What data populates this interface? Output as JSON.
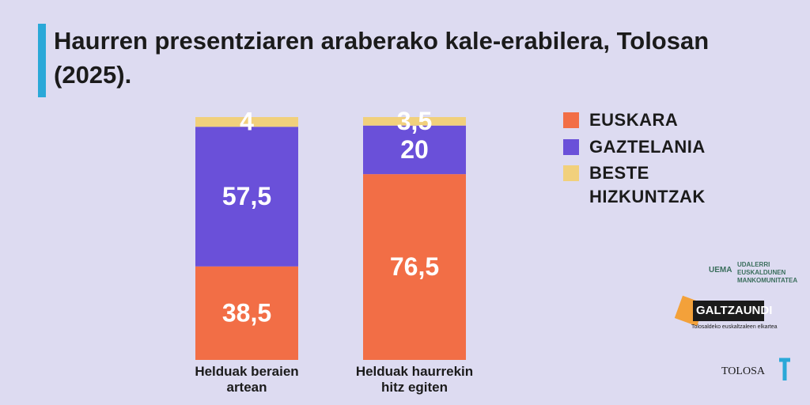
{
  "chart_data": {
    "type": "stacked_bar",
    "title": "Haurren presentziaren araberako kale-erabilera, Tolosan (2025).",
    "categories": [
      "Helduak beraien artean",
      "Helduak haurrekin hitz egiten"
    ],
    "series": [
      {
        "name": "EUSKARA",
        "color": "#f26e46",
        "values": [
          38.5,
          76.5
        ],
        "value_labels": [
          "38,5",
          "76,5"
        ]
      },
      {
        "name": "GAZTELANIA",
        "color": "#6a50d9",
        "values": [
          57.5,
          20
        ],
        "value_labels": [
          "57,5",
          "20"
        ]
      },
      {
        "name": "BESTE HIZKUNTZAK",
        "color": "#f1d07c",
        "values": [
          4,
          3.5
        ],
        "value_labels": [
          "4",
          "3,5"
        ]
      }
    ],
    "ylim": [
      0,
      100
    ],
    "annotations": [
      "UEMA",
      "UDALERRI EUSKALDUNEN MANKOMUNITATEA",
      "GALTZAUNDI",
      "Tolosaldeko euskaltzaleen elkartea",
      "TOLOSA"
    ]
  }
}
